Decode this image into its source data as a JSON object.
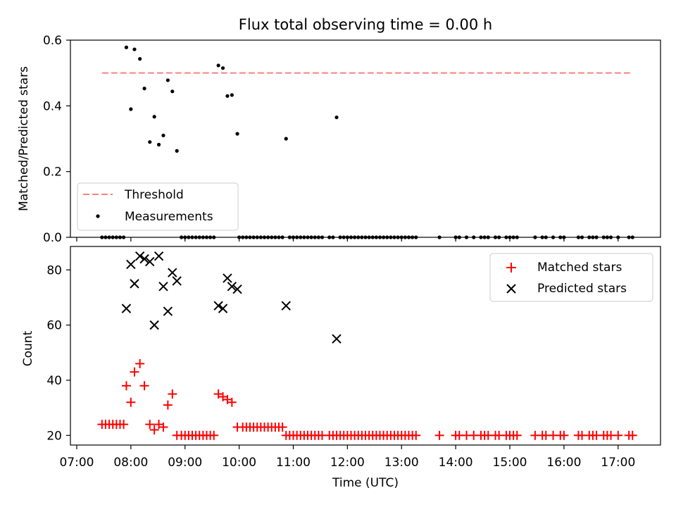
{
  "colors": {
    "threshold": "#ff7f7f",
    "measurements": "#000000",
    "matched": "#ff0000",
    "predicted": "#000000"
  },
  "chart_data": [
    {
      "type": "scatter",
      "title": "Flux total observing time = 0.00 h",
      "ylabel": "Matched/Predicted stars",
      "xlim": [
        "06:53",
        "17:47"
      ],
      "ylim": [
        0,
        0.6
      ],
      "yticks": [
        "0.0",
        "0.2",
        "0.4",
        "0.6"
      ],
      "legend_position": "lower-left",
      "threshold": {
        "name": "Threshold",
        "value": 0.5,
        "x_range": [
          "07:28",
          "17:14"
        ]
      },
      "series": [
        {
          "name": "Measurements",
          "points": [
            [
              "07:28",
              0
            ],
            [
              "07:32",
              0
            ],
            [
              "07:36",
              0
            ],
            [
              "07:40",
              0
            ],
            [
              "07:44",
              0
            ],
            [
              "07:48",
              0
            ],
            [
              "07:52",
              0
            ],
            [
              "07:55",
              0.578
            ],
            [
              "08:00",
              0.39
            ],
            [
              "08:04",
              0.572
            ],
            [
              "08:10",
              0.543
            ],
            [
              "08:15",
              0.453
            ],
            [
              "08:21",
              0.29
            ],
            [
              "08:26",
              0.367
            ],
            [
              "08:31",
              0.282
            ],
            [
              "08:36",
              0.31
            ],
            [
              "08:41",
              0.478
            ],
            [
              "08:46",
              0.444
            ],
            [
              "08:51",
              0.263
            ],
            [
              "08:56",
              0
            ],
            [
              "09:00",
              0
            ],
            [
              "09:04",
              0
            ],
            [
              "09:08",
              0
            ],
            [
              "09:12",
              0
            ],
            [
              "09:16",
              0
            ],
            [
              "09:20",
              0
            ],
            [
              "09:24",
              0
            ],
            [
              "09:28",
              0
            ],
            [
              "09:32",
              0
            ],
            [
              "09:37",
              0.523
            ],
            [
              "09:42",
              0.515
            ],
            [
              "09:47",
              0.43
            ],
            [
              "09:52",
              0.433
            ],
            [
              "09:58",
              0.315
            ],
            [
              "10:00",
              0
            ],
            [
              "10:04",
              0
            ],
            [
              "10:08",
              0
            ],
            [
              "10:12",
              0
            ],
            [
              "10:16",
              0
            ],
            [
              "10:20",
              0
            ],
            [
              "10:24",
              0
            ],
            [
              "10:28",
              0
            ],
            [
              "10:32",
              0
            ],
            [
              "10:36",
              0
            ],
            [
              "10:40",
              0
            ],
            [
              "10:44",
              0
            ],
            [
              "10:48",
              0
            ],
            [
              "10:52",
              0.3
            ],
            [
              "10:56",
              0
            ],
            [
              "11:00",
              0
            ],
            [
              "11:04",
              0
            ],
            [
              "11:08",
              0
            ],
            [
              "11:12",
              0
            ],
            [
              "11:16",
              0
            ],
            [
              "11:20",
              0
            ],
            [
              "11:24",
              0
            ],
            [
              "11:28",
              0
            ],
            [
              "11:32",
              0
            ],
            [
              "11:40",
              0
            ],
            [
              "11:44",
              0
            ],
            [
              "11:48",
              0.365
            ],
            [
              "11:52",
              0
            ],
            [
              "11:56",
              0
            ],
            [
              "12:00",
              0
            ],
            [
              "12:04",
              0
            ],
            [
              "12:08",
              0
            ],
            [
              "12:12",
              0
            ],
            [
              "12:16",
              0
            ],
            [
              "12:20",
              0
            ],
            [
              "12:24",
              0
            ],
            [
              "12:28",
              0
            ],
            [
              "12:32",
              0
            ],
            [
              "12:36",
              0
            ],
            [
              "12:40",
              0
            ],
            [
              "12:44",
              0
            ],
            [
              "12:48",
              0
            ],
            [
              "12:52",
              0
            ],
            [
              "12:56",
              0
            ],
            [
              "13:00",
              0
            ],
            [
              "13:04",
              0
            ],
            [
              "13:08",
              0
            ],
            [
              "13:12",
              0
            ],
            [
              "13:16",
              0
            ],
            [
              "13:42",
              0
            ],
            [
              "14:00",
              0
            ],
            [
              "14:04",
              0
            ],
            [
              "14:12",
              0
            ],
            [
              "14:20",
              0
            ],
            [
              "14:28",
              0
            ],
            [
              "14:32",
              0
            ],
            [
              "14:36",
              0
            ],
            [
              "14:44",
              0
            ],
            [
              "14:48",
              0
            ],
            [
              "14:56",
              0
            ],
            [
              "15:00",
              0
            ],
            [
              "15:04",
              0
            ],
            [
              "15:08",
              0
            ],
            [
              "15:28",
              0
            ],
            [
              "15:36",
              0
            ],
            [
              "15:40",
              0
            ],
            [
              "15:48",
              0
            ],
            [
              "15:56",
              0
            ],
            [
              "16:00",
              0
            ],
            [
              "16:16",
              0
            ],
            [
              "16:20",
              0
            ],
            [
              "16:28",
              0
            ],
            [
              "16:32",
              0
            ],
            [
              "16:36",
              0
            ],
            [
              "16:44",
              0
            ],
            [
              "16:48",
              0
            ],
            [
              "16:52",
              0
            ],
            [
              "17:00",
              0
            ],
            [
              "17:12",
              0
            ],
            [
              "17:16",
              0
            ]
          ]
        }
      ]
    },
    {
      "type": "scatter",
      "xlabel": "Time (UTC)",
      "ylabel": "Count",
      "xlim": [
        "06:53",
        "17:47"
      ],
      "ylim": [
        16.5,
        88.5
      ],
      "yticks": [
        20,
        40,
        60,
        80
      ],
      "xticks": [
        "07:00",
        "08:00",
        "09:00",
        "10:00",
        "11:00",
        "12:00",
        "13:00",
        "14:00",
        "15:00",
        "16:00",
        "17:00"
      ],
      "legend_position": "top-right",
      "series": [
        {
          "name": "Matched stars",
          "marker": "+",
          "points": [
            [
              "07:28",
              24
            ],
            [
              "07:32",
              24
            ],
            [
              "07:36",
              24
            ],
            [
              "07:40",
              24
            ],
            [
              "07:44",
              24
            ],
            [
              "07:48",
              24
            ],
            [
              "07:52",
              24
            ],
            [
              "07:55",
              38
            ],
            [
              "08:00",
              32
            ],
            [
              "08:04",
              43
            ],
            [
              "08:10",
              46
            ],
            [
              "08:15",
              38
            ],
            [
              "08:21",
              24
            ],
            [
              "08:26",
              22
            ],
            [
              "08:31",
              24
            ],
            [
              "08:36",
              23
            ],
            [
              "08:41",
              31
            ],
            [
              "08:46",
              35
            ],
            [
              "08:51",
              20
            ],
            [
              "08:56",
              20
            ],
            [
              "09:00",
              20
            ],
            [
              "09:04",
              20
            ],
            [
              "09:08",
              20
            ],
            [
              "09:12",
              20
            ],
            [
              "09:16",
              20
            ],
            [
              "09:20",
              20
            ],
            [
              "09:24",
              20
            ],
            [
              "09:28",
              20
            ],
            [
              "09:32",
              20
            ],
            [
              "09:37",
              35
            ],
            [
              "09:42",
              34
            ],
            [
              "09:47",
              33
            ],
            [
              "09:52",
              32
            ],
            [
              "09:58",
              23
            ],
            [
              "10:04",
              23
            ],
            [
              "10:08",
              23
            ],
            [
              "10:12",
              23
            ],
            [
              "10:16",
              23
            ],
            [
              "10:20",
              23
            ],
            [
              "10:24",
              23
            ],
            [
              "10:28",
              23
            ],
            [
              "10:32",
              23
            ],
            [
              "10:36",
              23
            ],
            [
              "10:40",
              23
            ],
            [
              "10:44",
              23
            ],
            [
              "10:48",
              23
            ],
            [
              "10:52",
              20
            ],
            [
              "10:56",
              20
            ],
            [
              "11:00",
              20
            ],
            [
              "11:04",
              20
            ],
            [
              "11:08",
              20
            ],
            [
              "11:12",
              20
            ],
            [
              "11:16",
              20
            ],
            [
              "11:20",
              20
            ],
            [
              "11:24",
              20
            ],
            [
              "11:28",
              20
            ],
            [
              "11:32",
              20
            ],
            [
              "11:40",
              20
            ],
            [
              "11:44",
              20
            ],
            [
              "11:48",
              20
            ],
            [
              "11:52",
              20
            ],
            [
              "11:56",
              20
            ],
            [
              "12:00",
              20
            ],
            [
              "12:04",
              20
            ],
            [
              "12:08",
              20
            ],
            [
              "12:12",
              20
            ],
            [
              "12:16",
              20
            ],
            [
              "12:20",
              20
            ],
            [
              "12:24",
              20
            ],
            [
              "12:28",
              20
            ],
            [
              "12:32",
              20
            ],
            [
              "12:36",
              20
            ],
            [
              "12:40",
              20
            ],
            [
              "12:44",
              20
            ],
            [
              "12:48",
              20
            ],
            [
              "12:52",
              20
            ],
            [
              "12:56",
              20
            ],
            [
              "13:00",
              20
            ],
            [
              "13:04",
              20
            ],
            [
              "13:08",
              20
            ],
            [
              "13:12",
              20
            ],
            [
              "13:16",
              20
            ],
            [
              "13:42",
              20
            ],
            [
              "14:00",
              20
            ],
            [
              "14:04",
              20
            ],
            [
              "14:12",
              20
            ],
            [
              "14:20",
              20
            ],
            [
              "14:28",
              20
            ],
            [
              "14:32",
              20
            ],
            [
              "14:36",
              20
            ],
            [
              "14:44",
              20
            ],
            [
              "14:48",
              20
            ],
            [
              "14:56",
              20
            ],
            [
              "15:00",
              20
            ],
            [
              "15:04",
              20
            ],
            [
              "15:08",
              20
            ],
            [
              "15:28",
              20
            ],
            [
              "15:36",
              20
            ],
            [
              "15:40",
              20
            ],
            [
              "15:48",
              20
            ],
            [
              "15:56",
              20
            ],
            [
              "16:00",
              20
            ],
            [
              "16:16",
              20
            ],
            [
              "16:20",
              20
            ],
            [
              "16:28",
              20
            ],
            [
              "16:32",
              20
            ],
            [
              "16:36",
              20
            ],
            [
              "16:44",
              20
            ],
            [
              "16:48",
              20
            ],
            [
              "16:52",
              20
            ],
            [
              "17:00",
              20
            ],
            [
              "17:12",
              20
            ],
            [
              "17:16",
              20
            ]
          ]
        },
        {
          "name": "Predicted stars",
          "marker": "x",
          "points": [
            [
              "07:55",
              66
            ],
            [
              "08:00",
              82
            ],
            [
              "08:04",
              75
            ],
            [
              "08:10",
              85
            ],
            [
              "08:15",
              84
            ],
            [
              "08:21",
              83
            ],
            [
              "08:26",
              60
            ],
            [
              "08:31",
              85
            ],
            [
              "08:36",
              74
            ],
            [
              "08:41",
              65
            ],
            [
              "08:46",
              79
            ],
            [
              "08:51",
              76
            ],
            [
              "09:37",
              67
            ],
            [
              "09:42",
              66
            ],
            [
              "09:47",
              77
            ],
            [
              "09:52",
              74
            ],
            [
              "09:58",
              73
            ],
            [
              "10:52",
              67
            ],
            [
              "11:48",
              55
            ]
          ]
        }
      ]
    }
  ]
}
